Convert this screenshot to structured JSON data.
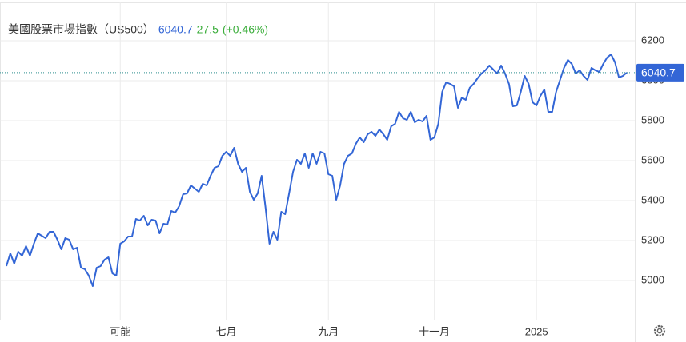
{
  "chart_data": {
    "type": "line",
    "title": "美國股票市場指數（US500）",
    "last": 6040.7,
    "change": 27.5,
    "change_pct": "(+0.46%)",
    "categories": [
      null,
      null,
      null,
      null,
      null,
      null,
      null,
      null,
      null,
      null,
      null,
      null,
      null,
      null,
      null,
      null,
      null,
      null,
      null,
      null,
      null,
      null,
      null,
      null,
      null,
      null,
      null,
      null,
      null,
      "可能",
      null,
      null,
      null,
      null,
      null,
      null,
      null,
      null,
      null,
      null,
      null,
      null,
      null,
      null,
      null,
      null,
      null,
      null,
      null,
      null,
      null,
      null,
      null,
      null,
      null,
      null,
      "七月",
      null,
      null,
      null,
      null,
      null,
      null,
      null,
      null,
      null,
      null,
      null,
      null,
      null,
      null,
      null,
      null,
      null,
      null,
      null,
      null,
      null,
      null,
      null,
      null,
      null,
      "九月",
      null,
      null,
      null,
      null,
      null,
      null,
      null,
      null,
      null,
      null,
      null,
      null,
      null,
      null,
      null,
      null,
      null,
      null,
      null,
      null,
      null,
      null,
      null,
      null,
      null,
      null,
      "十一月",
      null,
      null,
      null,
      null,
      null,
      null,
      null,
      null,
      null,
      null,
      null,
      null,
      null,
      null,
      null,
      null,
      null,
      null,
      null,
      null,
      null,
      null,
      null,
      null,
      null,
      "2025",
      null,
      null,
      null,
      null,
      null,
      null,
      null,
      null,
      null,
      null,
      null,
      null,
      null,
      null,
      null,
      null,
      null,
      null,
      null,
      null,
      null,
      null,
      null
    ],
    "series": [
      {
        "name": "US500",
        "color": "#3366d6",
        "values": [
          5072,
          5136,
          5084,
          5144,
          5124,
          5172,
          5124,
          5184,
          5236,
          5224,
          5212,
          5244,
          5244,
          5204,
          5156,
          5212,
          5204,
          5156,
          5164,
          5064,
          5056,
          5024,
          4972,
          5064,
          5072,
          5104,
          5116,
          5036,
          5024,
          5184,
          5196,
          5220,
          5220,
          5308,
          5300,
          5324,
          5276,
          5304,
          5300,
          5236,
          5284,
          5280,
          5348,
          5340,
          5372,
          5432,
          5436,
          5476,
          5460,
          5444,
          5484,
          5476,
          5524,
          5564,
          5572,
          5624,
          5644,
          5624,
          5664,
          5584,
          5544,
          5564,
          5444,
          5404,
          5436,
          5524,
          5364,
          5184,
          5244,
          5204,
          5344,
          5332,
          5436,
          5544,
          5604,
          5584,
          5636,
          5564,
          5636,
          5584,
          5644,
          5636,
          5532,
          5524,
          5404,
          5476,
          5584,
          5624,
          5636,
          5684,
          5716,
          5692,
          5732,
          5744,
          5724,
          5756,
          5732,
          5704,
          5772,
          5784,
          5844,
          5812,
          5804,
          5844,
          5792,
          5804,
          5796,
          5824,
          5704,
          5716,
          5784,
          5944,
          5992,
          5984,
          5972,
          5864,
          5916,
          5904,
          5964,
          5984,
          6012,
          6036,
          6052,
          6076,
          6056,
          6036,
          6076,
          6036,
          5984,
          5872,
          5876,
          5944,
          6024,
          5984,
          5892,
          5876,
          5924,
          5956,
          5844,
          5844,
          5944,
          6004,
          6064,
          6104,
          6084,
          6036,
          6052,
          6024,
          6004,
          6064,
          6052,
          6044,
          6084,
          6116,
          6132,
          6092,
          6016,
          6024,
          6040.7
        ]
      }
    ],
    "ylim": [
      4804,
      6392
    ],
    "yticks": [
      5000,
      5200,
      5400,
      5600,
      5800,
      6000,
      6200
    ],
    "grid": true,
    "y_axis_side": "right",
    "title_price_color": "#3366d6",
    "change_color": "#3cae3c"
  }
}
